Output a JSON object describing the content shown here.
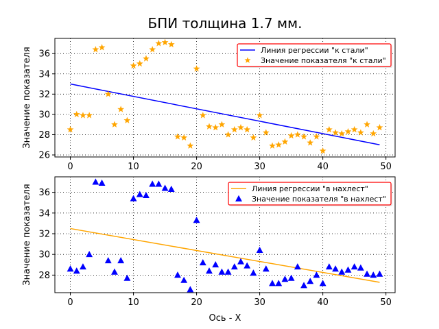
{
  "title": "БПИ толщина 1.7 мм.",
  "xlabel": "Ось - X",
  "chart_data": [
    {
      "type": "scatter",
      "ylabel": "Значение показателя",
      "xlim": [
        -2.45,
        51.45
      ],
      "ylim": [
        25.8,
        37.5
      ],
      "xticks": [
        0,
        10,
        20,
        30,
        40,
        50
      ],
      "yticks": [
        26,
        28,
        30,
        32,
        34,
        36
      ],
      "grid": true,
      "legend_position": "top-right",
      "series": [
        {
          "name": "Линия регрессии \"к стали\"",
          "kind": "line",
          "color": "#0000ff",
          "x": [
            0,
            49
          ],
          "y": [
            33.0,
            27.0
          ]
        },
        {
          "name": "Значение показателя \"к стали\"",
          "kind": "scatter",
          "marker": "star",
          "color": "#ffa500",
          "x": [
            0,
            1,
            2,
            3,
            4,
            5,
            6,
            7,
            8,
            9,
            10,
            11,
            12,
            13,
            14,
            15,
            16,
            17,
            18,
            19,
            20,
            21,
            22,
            23,
            24,
            25,
            26,
            27,
            28,
            29,
            30,
            31,
            32,
            33,
            34,
            35,
            36,
            37,
            38,
            39,
            40,
            41,
            42,
            43,
            44,
            45,
            46,
            47,
            48,
            49
          ],
          "y": [
            28.5,
            30.0,
            29.9,
            29.9,
            36.4,
            36.6,
            32.0,
            29.0,
            30.5,
            29.4,
            34.8,
            35.0,
            35.5,
            36.4,
            37.0,
            37.1,
            36.9,
            27.8,
            27.7,
            26.9,
            34.5,
            29.9,
            28.8,
            28.7,
            29.0,
            28.0,
            28.5,
            28.7,
            28.5,
            27.7,
            29.9,
            28.2,
            26.9,
            27.0,
            27.3,
            27.9,
            28.0,
            27.8,
            27.2,
            27.8,
            26.4,
            28.5,
            28.2,
            28.1,
            28.3,
            28.5,
            28.2,
            29.0,
            28.1,
            28.7
          ]
        }
      ]
    },
    {
      "type": "scatter",
      "ylabel": "Значение показателя",
      "xlim": [
        -2.45,
        51.45
      ],
      "ylim": [
        26.3,
        37.5
      ],
      "xticks": [
        0,
        10,
        20,
        30,
        40,
        50
      ],
      "yticks": [
        28,
        30,
        32,
        34,
        36
      ],
      "grid": true,
      "legend_position": "top-right",
      "series": [
        {
          "name": "Линия регрессии \"в нахлест\"",
          "kind": "line",
          "color": "#ffa500",
          "x": [
            0,
            49
          ],
          "y": [
            32.5,
            27.3
          ]
        },
        {
          "name": "Значение показателя \"в нахлест\"",
          "kind": "scatter",
          "marker": "triangle",
          "color": "#0000ff",
          "x": [
            0,
            1,
            2,
            3,
            4,
            5,
            6,
            7,
            8,
            9,
            10,
            11,
            12,
            13,
            14,
            15,
            16,
            17,
            18,
            19,
            20,
            21,
            22,
            23,
            24,
            25,
            26,
            27,
            28,
            29,
            30,
            31,
            32,
            33,
            34,
            35,
            36,
            37,
            38,
            39,
            40,
            41,
            42,
            43,
            44,
            45,
            46,
            47,
            48,
            49
          ],
          "y": [
            28.6,
            28.4,
            28.8,
            30.0,
            37.0,
            36.9,
            29.4,
            28.3,
            29.4,
            27.7,
            35.4,
            35.8,
            35.7,
            36.8,
            36.8,
            36.4,
            36.3,
            28.0,
            27.5,
            26.6,
            33.3,
            29.2,
            28.4,
            29.0,
            28.3,
            28.3,
            28.8,
            29.3,
            28.9,
            28.2,
            30.4,
            28.6,
            27.2,
            27.2,
            27.6,
            27.7,
            28.8,
            27.0,
            27.4,
            28.0,
            27.2,
            28.8,
            28.6,
            28.3,
            28.5,
            28.8,
            28.7,
            28.1,
            28.0,
            28.1
          ]
        }
      ]
    }
  ]
}
